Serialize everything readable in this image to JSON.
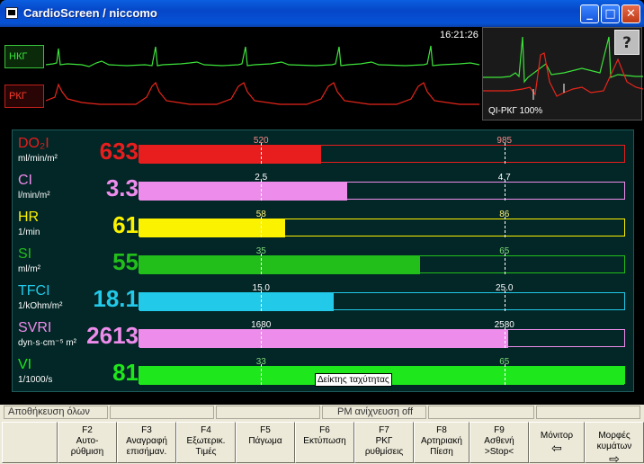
{
  "window": {
    "title": "CardioScreen / niccomo",
    "minimize": "_",
    "maximize": "□",
    "close": "✕"
  },
  "ecg": {
    "lead_green": "НКГ",
    "lead_red": "РКГ",
    "time": "16:21:26",
    "qi_label": "QI-РКГ 100%",
    "help": "?"
  },
  "parameters": [
    {
      "name": "DO₂I",
      "unit": "ml/min/m²",
      "value": "633",
      "color": "#e81d1d",
      "fill": 0.375,
      "range_low": "520",
      "range_high": "985",
      "low_pos": 0.25,
      "high_pos": 0.75
    },
    {
      "name": "CI",
      "unit": "l/min/m²",
      "value": "3.3",
      "color": "#ee8cec",
      "fill": 0.428,
      "range_low": "2.5",
      "range_high": "4.7",
      "low_pos": 0.25,
      "high_pos": 0.75
    },
    {
      "name": "HR",
      "unit": "1/min",
      "value": "61",
      "color": "#fbf200",
      "fill": 0.3,
      "range_low": "58",
      "range_high": "86",
      "low_pos": 0.25,
      "high_pos": 0.75
    },
    {
      "name": "SI",
      "unit": "ml/m²",
      "value": "55",
      "color": "#22bf1b",
      "fill": 0.578,
      "range_low": "35",
      "range_high": "65",
      "low_pos": 0.25,
      "high_pos": 0.75
    },
    {
      "name": "TFCI",
      "unit": "1/kOhm/m²",
      "value": "18.1",
      "color": "#22c9e8",
      "fill": 0.401,
      "range_low": "15.0",
      "range_high": "25.0",
      "low_pos": 0.25,
      "high_pos": 0.75
    },
    {
      "name": "SVRI",
      "unit": "dyn·s·cm⁻⁵ m²",
      "value": "2613",
      "color": "#ee8cec",
      "fill": 0.761,
      "range_low": "1680",
      "range_high": "2580",
      "low_pos": 0.25,
      "high_pos": 0.75
    },
    {
      "name": "VI",
      "unit": "1/1000/s",
      "value": "81",
      "color": "#1ee81b",
      "fill": 1.0,
      "range_low": "33",
      "range_high": "65",
      "low_pos": 0.25,
      "high_pos": 0.75
    }
  ],
  "tooltip": "Δείκτης ταχύτητας",
  "status": {
    "save_all": "Αποθήκευση όλων",
    "pm_detect": "PM ανίχνευση off"
  },
  "fkeys": [
    {
      "key": "",
      "label": ""
    },
    {
      "key": "F2",
      "label": "Αυτο-\nρύθμιση"
    },
    {
      "key": "F3",
      "label": "Αναγραφή\nεπισήμαν."
    },
    {
      "key": "F4",
      "label": "Εξωτερικ.\nΤιμές"
    },
    {
      "key": "F5",
      "label": "Πάγωμα"
    },
    {
      "key": "F6",
      "label": "Εκτύπωση"
    },
    {
      "key": "F7",
      "label": "ΡΚΓ\nρυθμίσεις"
    },
    {
      "key": "F8",
      "label": "Αρτηριακή\nΠίεση"
    },
    {
      "key": "F9",
      "label": "Ασθενή\n>Stop<"
    },
    {
      "key": "",
      "label": "Μόνιτορ",
      "arrow": "⇦"
    },
    {
      "key": "",
      "label": "Μορφές\nκυμάτων",
      "arrow": "⇨"
    }
  ]
}
